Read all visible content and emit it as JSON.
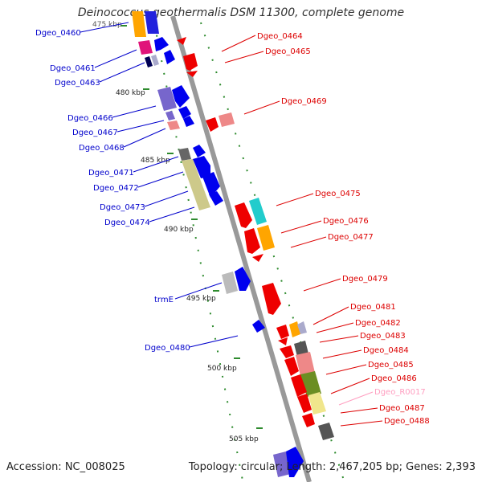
{
  "title": "Deinococcus geothermalis DSM 11300, complete genome",
  "footer": {
    "accession": "Accession: NC_008025",
    "summary": "Topology: circular; Length: 2,467,205 bp; Genes: 2,393"
  },
  "colors": {
    "backbone": "#999999",
    "tick": "#2e8b2e",
    "forward_label": "#0000cc",
    "reverse_label": "#dd0000",
    "rna_label": "#ff9ec0"
  },
  "ticks": [
    "475 kbp",
    "480 kbp",
    "485 kbp",
    "490 kbp",
    "495 kbp",
    "500 kbp",
    "505 kbp"
  ],
  "genes_left": [
    "Dgeo_0460",
    "Dgeo_0461",
    "Dgeo_0463",
    "Dgeo_0466",
    "Dgeo_0467",
    "Dgeo_0468",
    "Dgeo_0471",
    "Dgeo_0472",
    "Dgeo_0473",
    "Dgeo_0474",
    "trmE",
    "Dgeo_0480"
  ],
  "genes_right": [
    "Dgeo_0464",
    "Dgeo_0465",
    "Dgeo_0469",
    "Dgeo_0475",
    "Dgeo_0476",
    "Dgeo_0477",
    "Dgeo_0479",
    "Dgeo_0481",
    "Dgeo_0482",
    "Dgeo_0483",
    "Dgeo_0484",
    "Dgeo_0485",
    "Dgeo_0486",
    "Dgeo_R0017",
    "Dgeo_0487",
    "Dgeo_0488"
  ]
}
